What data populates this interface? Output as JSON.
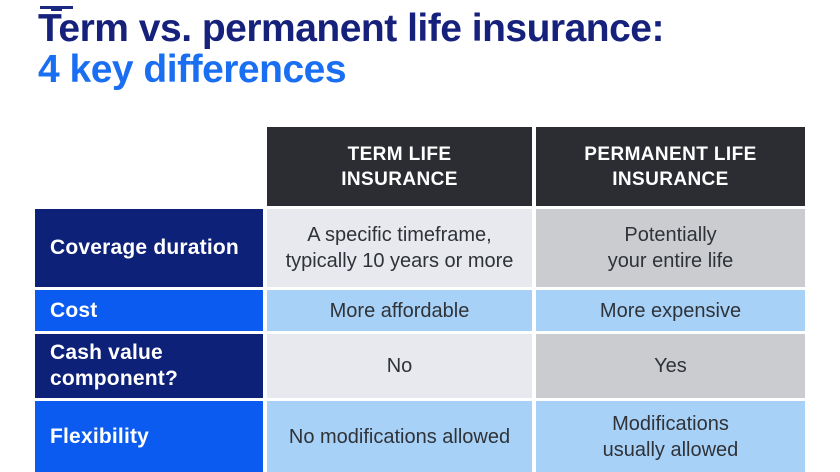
{
  "title": {
    "line1": "Term vs. permanent life insurance:",
    "line2": "4 key differences"
  },
  "decor": {
    "top_left_mark": "cropped navy logo/shape at top edge"
  },
  "table": {
    "column_headers": [
      {
        "label": "TERM LIFE\nINSURANCE"
      },
      {
        "label": "PERMANENT LIFE\nINSURANCE"
      }
    ],
    "rows": [
      {
        "label": "Coverage duration",
        "term": "A specific timeframe,\ntypically 10 years or more",
        "permanent": "Potentially\nyour entire life"
      },
      {
        "label": "Cost",
        "term": "More affordable",
        "permanent": "More expensive"
      },
      {
        "label": "Cash value\ncomponent?",
        "term": "No",
        "permanent": "Yes"
      },
      {
        "label": "Flexibility",
        "term": "No modifications allowed",
        "permanent": "Modifications\nusually allowed"
      }
    ]
  },
  "colors": {
    "title_navy": "#16217c",
    "title_blue": "#1a6ef2",
    "header_charcoal": "#2b2d33",
    "label_navy": "#0e2179",
    "label_blue": "#0b5bf0",
    "cell_light_gray": "#e8e9ee",
    "cell_mid_gray": "#cacccf",
    "cell_light_blue": "#a8d1f8",
    "cell_text": "#2f3338",
    "background": "#ffffff"
  }
}
